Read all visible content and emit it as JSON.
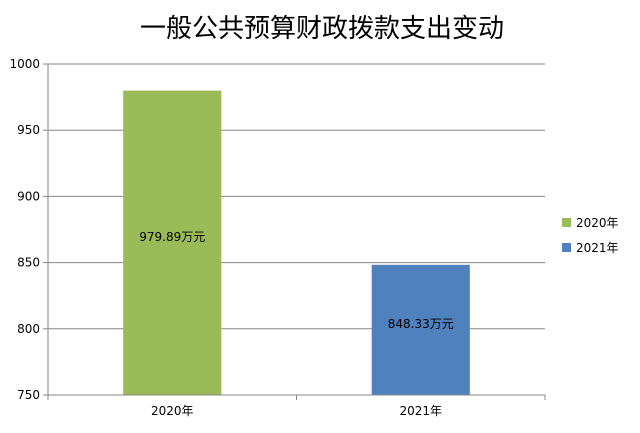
{
  "chart_data": {
    "type": "bar",
    "title": "一般公共预算财政拨款支出变动",
    "categories": [
      "2020年",
      "2021年"
    ],
    "values": [
      979.89,
      848.33
    ],
    "data_labels": [
      "979.89万元",
      "848.33万元"
    ],
    "colors": [
      "#9bbb59",
      "#4f81bd"
    ],
    "legend": [
      "2020年",
      "2021年"
    ],
    "legend_position": "right",
    "ylim": [
      750,
      1000
    ],
    "yticks": [
      750,
      800,
      850,
      900,
      950,
      1000
    ],
    "grid": true,
    "xlabel": "",
    "ylabel": ""
  }
}
